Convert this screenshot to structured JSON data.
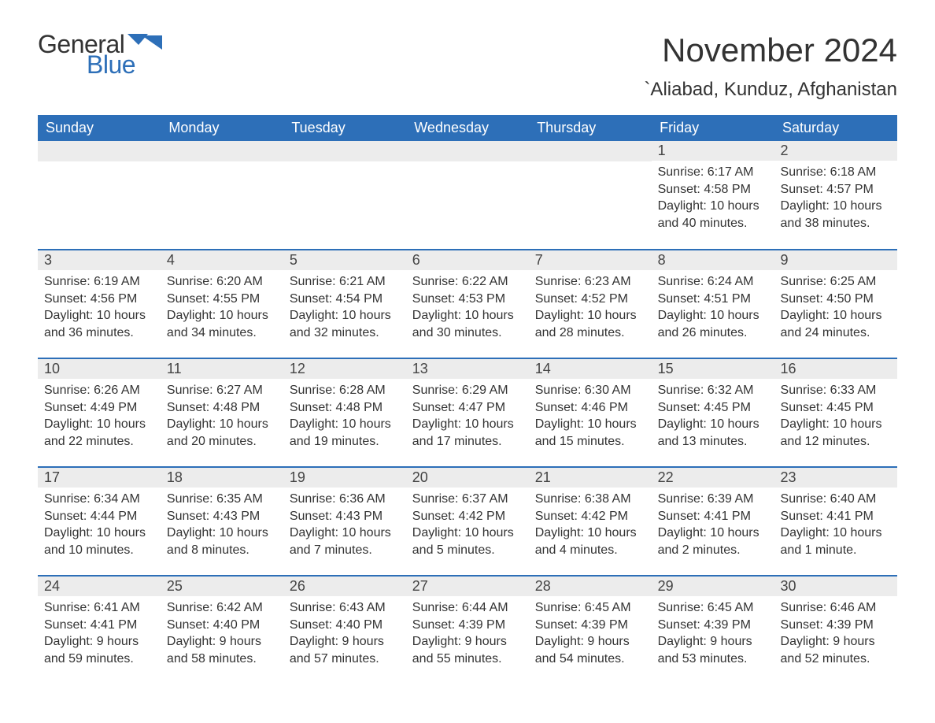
{
  "logo": {
    "word1": "General",
    "word2": "Blue",
    "flag_color": "#2d6fb8"
  },
  "title": "November 2024",
  "location": "`Aliabad, Kunduz, Afghanistan",
  "colors": {
    "header_bg": "#2d6fb8",
    "header_text": "#ffffff",
    "daynum_bg": "#ececec",
    "row_border": "#2d6fb8",
    "text": "#333333",
    "background": "#ffffff"
  },
  "fonts": {
    "title_size_pt": 32,
    "location_size_pt": 18,
    "header_size_pt": 14,
    "body_size_pt": 12
  },
  "weekday_headers": [
    "Sunday",
    "Monday",
    "Tuesday",
    "Wednesday",
    "Thursday",
    "Friday",
    "Saturday"
  ],
  "weeks": [
    [
      {
        "day": null
      },
      {
        "day": null
      },
      {
        "day": null
      },
      {
        "day": null
      },
      {
        "day": null
      },
      {
        "day": 1,
        "sunrise": "6:17 AM",
        "sunset": "4:58 PM",
        "daylight": "10 hours and 40 minutes."
      },
      {
        "day": 2,
        "sunrise": "6:18 AM",
        "sunset": "4:57 PM",
        "daylight": "10 hours and 38 minutes."
      }
    ],
    [
      {
        "day": 3,
        "sunrise": "6:19 AM",
        "sunset": "4:56 PM",
        "daylight": "10 hours and 36 minutes."
      },
      {
        "day": 4,
        "sunrise": "6:20 AM",
        "sunset": "4:55 PM",
        "daylight": "10 hours and 34 minutes."
      },
      {
        "day": 5,
        "sunrise": "6:21 AM",
        "sunset": "4:54 PM",
        "daylight": "10 hours and 32 minutes."
      },
      {
        "day": 6,
        "sunrise": "6:22 AM",
        "sunset": "4:53 PM",
        "daylight": "10 hours and 30 minutes."
      },
      {
        "day": 7,
        "sunrise": "6:23 AM",
        "sunset": "4:52 PM",
        "daylight": "10 hours and 28 minutes."
      },
      {
        "day": 8,
        "sunrise": "6:24 AM",
        "sunset": "4:51 PM",
        "daylight": "10 hours and 26 minutes."
      },
      {
        "day": 9,
        "sunrise": "6:25 AM",
        "sunset": "4:50 PM",
        "daylight": "10 hours and 24 minutes."
      }
    ],
    [
      {
        "day": 10,
        "sunrise": "6:26 AM",
        "sunset": "4:49 PM",
        "daylight": "10 hours and 22 minutes."
      },
      {
        "day": 11,
        "sunrise": "6:27 AM",
        "sunset": "4:48 PM",
        "daylight": "10 hours and 20 minutes."
      },
      {
        "day": 12,
        "sunrise": "6:28 AM",
        "sunset": "4:48 PM",
        "daylight": "10 hours and 19 minutes."
      },
      {
        "day": 13,
        "sunrise": "6:29 AM",
        "sunset": "4:47 PM",
        "daylight": "10 hours and 17 minutes."
      },
      {
        "day": 14,
        "sunrise": "6:30 AM",
        "sunset": "4:46 PM",
        "daylight": "10 hours and 15 minutes."
      },
      {
        "day": 15,
        "sunrise": "6:32 AM",
        "sunset": "4:45 PM",
        "daylight": "10 hours and 13 minutes."
      },
      {
        "day": 16,
        "sunrise": "6:33 AM",
        "sunset": "4:45 PM",
        "daylight": "10 hours and 12 minutes."
      }
    ],
    [
      {
        "day": 17,
        "sunrise": "6:34 AM",
        "sunset": "4:44 PM",
        "daylight": "10 hours and 10 minutes."
      },
      {
        "day": 18,
        "sunrise": "6:35 AM",
        "sunset": "4:43 PM",
        "daylight": "10 hours and 8 minutes."
      },
      {
        "day": 19,
        "sunrise": "6:36 AM",
        "sunset": "4:43 PM",
        "daylight": "10 hours and 7 minutes."
      },
      {
        "day": 20,
        "sunrise": "6:37 AM",
        "sunset": "4:42 PM",
        "daylight": "10 hours and 5 minutes."
      },
      {
        "day": 21,
        "sunrise": "6:38 AM",
        "sunset": "4:42 PM",
        "daylight": "10 hours and 4 minutes."
      },
      {
        "day": 22,
        "sunrise": "6:39 AM",
        "sunset": "4:41 PM",
        "daylight": "10 hours and 2 minutes."
      },
      {
        "day": 23,
        "sunrise": "6:40 AM",
        "sunset": "4:41 PM",
        "daylight": "10 hours and 1 minute."
      }
    ],
    [
      {
        "day": 24,
        "sunrise": "6:41 AM",
        "sunset": "4:41 PM",
        "daylight": "9 hours and 59 minutes."
      },
      {
        "day": 25,
        "sunrise": "6:42 AM",
        "sunset": "4:40 PM",
        "daylight": "9 hours and 58 minutes."
      },
      {
        "day": 26,
        "sunrise": "6:43 AM",
        "sunset": "4:40 PM",
        "daylight": "9 hours and 57 minutes."
      },
      {
        "day": 27,
        "sunrise": "6:44 AM",
        "sunset": "4:39 PM",
        "daylight": "9 hours and 55 minutes."
      },
      {
        "day": 28,
        "sunrise": "6:45 AM",
        "sunset": "4:39 PM",
        "daylight": "9 hours and 54 minutes."
      },
      {
        "day": 29,
        "sunrise": "6:45 AM",
        "sunset": "4:39 PM",
        "daylight": "9 hours and 53 minutes."
      },
      {
        "day": 30,
        "sunrise": "6:46 AM",
        "sunset": "4:39 PM",
        "daylight": "9 hours and 52 minutes."
      }
    ]
  ],
  "labels": {
    "sunrise": "Sunrise:",
    "sunset": "Sunset:",
    "daylight": "Daylight:"
  }
}
